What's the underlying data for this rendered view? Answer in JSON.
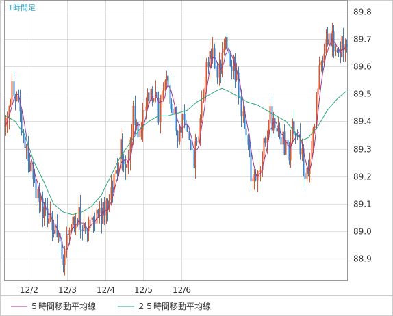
{
  "chart_data": {
    "type": "candlestick",
    "period_label": "1時間足",
    "x_ticks": [
      "12/2",
      "12/3",
      "12/4",
      "12/5",
      "12/6"
    ],
    "y_ticks": [
      "88.9",
      "89.0",
      "89.1",
      "89.2",
      "89.3",
      "89.4",
      "89.5",
      "89.6",
      "89.7",
      "89.8"
    ],
    "ylim": [
      88.82,
      89.84
    ],
    "grid": true,
    "legend_position": "bottom",
    "colors": {
      "up": "#d9582f",
      "down": "#3d7fc4",
      "ma5": "#9a3a8c",
      "ma25": "#2aa67a",
      "grid": "#dddddd",
      "frame": "#999999"
    },
    "series": [
      {
        "name": "５時間移動平均線",
        "color": "#9a3a8c"
      },
      {
        "name": "２５時間移動平均線",
        "color": "#2aa67a"
      }
    ],
    "close_path": [
      [
        0,
        89.42
      ],
      [
        4,
        89.52
      ],
      [
        8,
        89.48
      ],
      [
        12,
        89.3
      ],
      [
        16,
        89.22
      ],
      [
        20,
        89.12
      ],
      [
        24,
        89.08
      ],
      [
        28,
        89.05
      ],
      [
        32,
        88.99
      ],
      [
        36,
        88.92
      ],
      [
        40,
        88.97
      ],
      [
        44,
        89.06
      ],
      [
        48,
        89.03
      ],
      [
        52,
        88.98
      ],
      [
        56,
        89.05
      ],
      [
        60,
        89.06
      ],
      [
        64,
        89.1
      ],
      [
        68,
        89.18
      ],
      [
        72,
        89.3
      ],
      [
        76,
        89.22
      ],
      [
        80,
        89.42
      ],
      [
        84,
        89.36
      ],
      [
        88,
        89.45
      ],
      [
        92,
        89.52
      ],
      [
        96,
        89.42
      ],
      [
        100,
        89.55
      ],
      [
        104,
        89.48
      ],
      [
        108,
        89.35
      ],
      [
        112,
        89.4
      ],
      [
        116,
        89.3
      ],
      [
        118,
        89.26
      ],
      [
        122,
        89.42
      ],
      [
        126,
        89.58
      ],
      [
        130,
        89.65
      ],
      [
        134,
        89.58
      ],
      [
        138,
        89.67
      ],
      [
        142,
        89.62
      ],
      [
        146,
        89.52
      ],
      [
        150,
        89.38
      ],
      [
        154,
        89.22
      ],
      [
        158,
        89.2
      ],
      [
        162,
        89.32
      ],
      [
        166,
        89.42
      ],
      [
        170,
        89.38
      ],
      [
        174,
        89.33
      ],
      [
        178,
        89.3
      ],
      [
        180,
        89.4
      ],
      [
        184,
        89.35
      ],
      [
        188,
        89.22
      ],
      [
        190,
        89.2
      ],
      [
        194,
        89.4
      ],
      [
        198,
        89.62
      ],
      [
        202,
        89.7
      ],
      [
        206,
        89.68
      ],
      [
        210,
        89.66
      ],
      [
        214,
        89.69
      ]
    ],
    "ma25_path": [
      [
        0,
        89.42
      ],
      [
        6,
        89.4
      ],
      [
        12,
        89.35
      ],
      [
        18,
        89.25
      ],
      [
        24,
        89.18
      ],
      [
        30,
        89.1
      ],
      [
        36,
        89.07
      ],
      [
        42,
        89.06
      ],
      [
        48,
        89.07
      ],
      [
        54,
        89.09
      ],
      [
        60,
        89.13
      ],
      [
        66,
        89.2
      ],
      [
        72,
        89.27
      ],
      [
        78,
        89.32
      ],
      [
        84,
        89.37
      ],
      [
        90,
        89.4
      ],
      [
        96,
        89.42
      ],
      [
        102,
        89.42
      ],
      [
        108,
        89.43
      ],
      [
        114,
        89.44
      ],
      [
        120,
        89.47
      ],
      [
        126,
        89.49
      ],
      [
        132,
        89.51
      ],
      [
        136,
        89.52
      ],
      [
        140,
        89.51
      ],
      [
        146,
        89.49
      ],
      [
        152,
        89.47
      ],
      [
        158,
        89.46
      ],
      [
        164,
        89.44
      ],
      [
        170,
        89.42
      ],
      [
        176,
        89.4
      ],
      [
        182,
        89.36
      ],
      [
        186,
        89.33
      ],
      [
        190,
        89.34
      ],
      [
        196,
        89.38
      ],
      [
        202,
        89.44
      ],
      [
        208,
        89.48
      ],
      [
        214,
        89.51
      ]
    ]
  }
}
